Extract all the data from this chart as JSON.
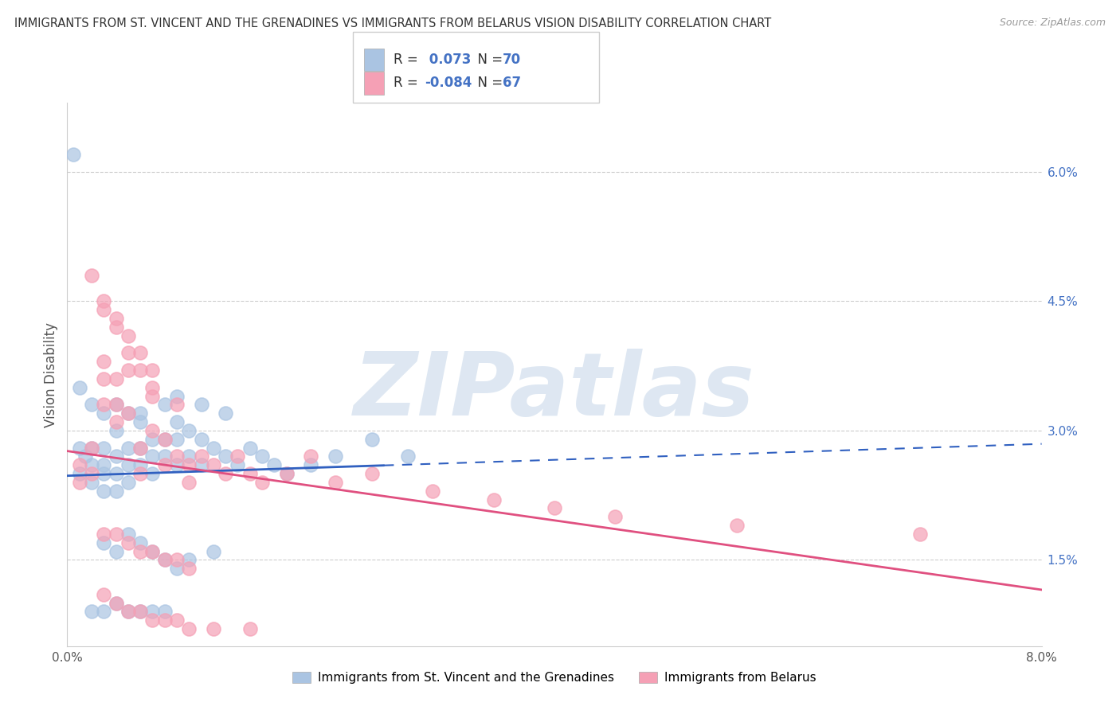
{
  "title": "IMMIGRANTS FROM ST. VINCENT AND THE GRENADINES VS IMMIGRANTS FROM BELARUS VISION DISABILITY CORRELATION CHART",
  "source": "Source: ZipAtlas.com",
  "ylabel": "Vision Disability",
  "right_ytick_vals": [
    0.015,
    0.03,
    0.045,
    0.06
  ],
  "right_ytick_labels": [
    "1.5%",
    "3.0%",
    "4.5%",
    "6.0%"
  ],
  "series1_label": "Immigrants from St. Vincent and the Grenadines",
  "series2_label": "Immigrants from Belarus",
  "series1_color": "#aac4e2",
  "series2_color": "#f5a0b5",
  "series1_line_color": "#3060c0",
  "series2_line_color": "#e05080",
  "R1": 0.073,
  "N1": 70,
  "R2": -0.084,
  "N2": 67,
  "stat_color": "#4472c4",
  "watermark": "ZIPatlas",
  "watermark_color": "#c8d8ea",
  "xlim": [
    0.0,
    0.08
  ],
  "ylim": [
    0.005,
    0.068
  ],
  "series1_x": [
    0.0005,
    0.001,
    0.001,
    0.0015,
    0.002,
    0.002,
    0.002,
    0.003,
    0.003,
    0.003,
    0.003,
    0.004,
    0.004,
    0.004,
    0.004,
    0.005,
    0.005,
    0.005,
    0.006,
    0.006,
    0.006,
    0.007,
    0.007,
    0.007,
    0.008,
    0.008,
    0.009,
    0.009,
    0.009,
    0.01,
    0.01,
    0.011,
    0.011,
    0.012,
    0.013,
    0.014,
    0.015,
    0.016,
    0.017,
    0.018,
    0.02,
    0.022,
    0.025,
    0.028,
    0.003,
    0.004,
    0.005,
    0.006,
    0.007,
    0.008,
    0.009,
    0.01,
    0.012,
    0.002,
    0.003,
    0.004,
    0.005,
    0.006,
    0.007,
    0.008,
    0.001,
    0.002,
    0.003,
    0.004,
    0.005,
    0.006,
    0.008,
    0.009,
    0.011,
    0.013
  ],
  "series1_y": [
    0.062,
    0.028,
    0.025,
    0.027,
    0.028,
    0.026,
    0.024,
    0.028,
    0.026,
    0.025,
    0.023,
    0.03,
    0.027,
    0.025,
    0.023,
    0.028,
    0.026,
    0.024,
    0.032,
    0.028,
    0.026,
    0.029,
    0.027,
    0.025,
    0.029,
    0.027,
    0.031,
    0.029,
    0.026,
    0.03,
    0.027,
    0.029,
    0.026,
    0.028,
    0.027,
    0.026,
    0.028,
    0.027,
    0.026,
    0.025,
    0.026,
    0.027,
    0.029,
    0.027,
    0.017,
    0.016,
    0.018,
    0.017,
    0.016,
    0.015,
    0.014,
    0.015,
    0.016,
    0.009,
    0.009,
    0.01,
    0.009,
    0.009,
    0.009,
    0.009,
    0.035,
    0.033,
    0.032,
    0.033,
    0.032,
    0.031,
    0.033,
    0.034,
    0.033,
    0.032
  ],
  "series2_x": [
    0.001,
    0.001,
    0.002,
    0.002,
    0.003,
    0.003,
    0.003,
    0.004,
    0.004,
    0.004,
    0.005,
    0.005,
    0.006,
    0.006,
    0.007,
    0.007,
    0.008,
    0.008,
    0.009,
    0.01,
    0.01,
    0.011,
    0.012,
    0.013,
    0.014,
    0.015,
    0.016,
    0.018,
    0.02,
    0.022,
    0.025,
    0.03,
    0.035,
    0.04,
    0.045,
    0.055,
    0.07,
    0.003,
    0.004,
    0.005,
    0.006,
    0.007,
    0.008,
    0.009,
    0.01,
    0.003,
    0.004,
    0.005,
    0.006,
    0.007,
    0.003,
    0.004,
    0.005,
    0.006,
    0.007,
    0.008,
    0.009,
    0.01,
    0.012,
    0.015,
    0.002,
    0.003,
    0.004,
    0.005,
    0.006,
    0.007,
    0.009
  ],
  "series2_y": [
    0.026,
    0.024,
    0.028,
    0.025,
    0.038,
    0.036,
    0.033,
    0.036,
    0.033,
    0.031,
    0.037,
    0.032,
    0.028,
    0.025,
    0.034,
    0.03,
    0.029,
    0.026,
    0.027,
    0.026,
    0.024,
    0.027,
    0.026,
    0.025,
    0.027,
    0.025,
    0.024,
    0.025,
    0.027,
    0.024,
    0.025,
    0.023,
    0.022,
    0.021,
    0.02,
    0.019,
    0.018,
    0.018,
    0.018,
    0.017,
    0.016,
    0.016,
    0.015,
    0.015,
    0.014,
    0.045,
    0.043,
    0.041,
    0.039,
    0.037,
    0.011,
    0.01,
    0.009,
    0.009,
    0.008,
    0.008,
    0.008,
    0.007,
    0.007,
    0.007,
    0.048,
    0.044,
    0.042,
    0.039,
    0.037,
    0.035,
    0.033
  ]
}
